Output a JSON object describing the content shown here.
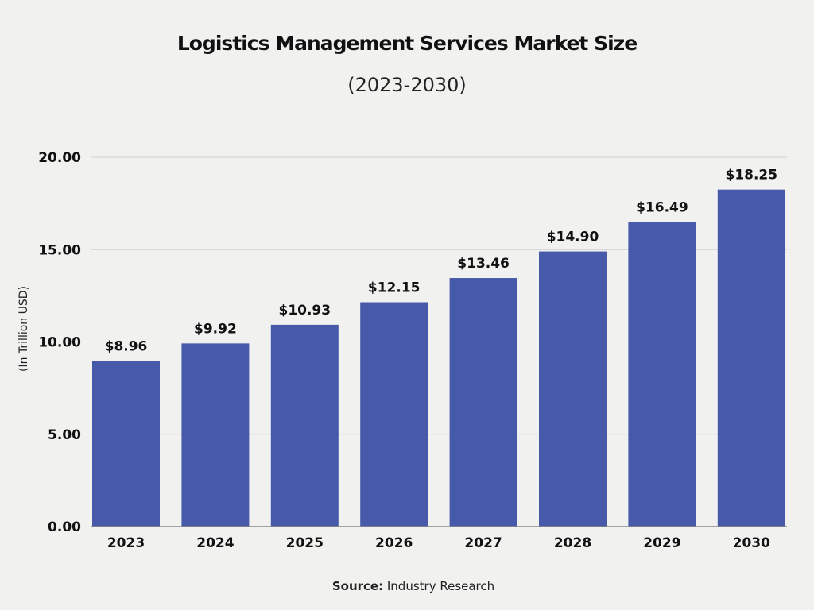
{
  "chart_data": {
    "type": "bar",
    "title": "Logistics Management Services Market Size",
    "subtitle": "(2023-2030)",
    "xlabel": "",
    "ylabel": "(In Trillion USD)",
    "categories": [
      "2023",
      "2024",
      "2025",
      "2026",
      "2027",
      "2028",
      "2029",
      "2030"
    ],
    "values": [
      8.96,
      9.92,
      10.93,
      12.15,
      13.46,
      14.9,
      16.49,
      18.25
    ],
    "data_labels": [
      "$8.96",
      "$9.92",
      "$10.93",
      "$12.15",
      "$13.46",
      "$14.90",
      "$16.49",
      "$18.25"
    ],
    "ylim": [
      0,
      20
    ],
    "yticks": [
      "0.00",
      "5.00",
      "10.00",
      "15.00",
      "20.00"
    ],
    "grid": true,
    "bar_color": "#4759a9",
    "source_label": "Source:",
    "source_text": "Industry Research"
  }
}
